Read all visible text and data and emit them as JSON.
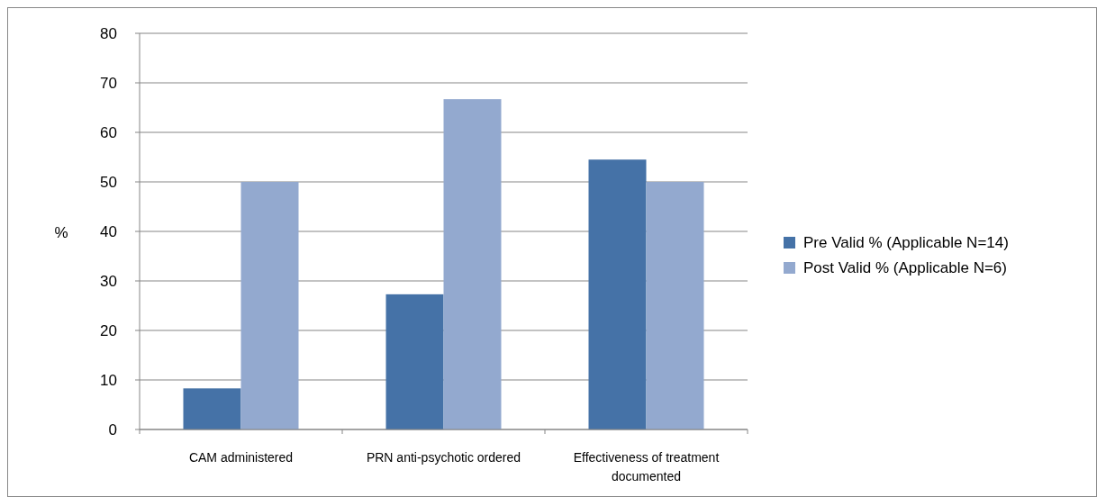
{
  "chart_data": {
    "type": "bar",
    "ylabel": "%",
    "categories": [
      "CAM administered",
      "PRN anti-psychotic ordered",
      "Effectiveness of treatment documented"
    ],
    "series": [
      {
        "name": "Pre Valid % (Applicable N=14)",
        "color": "#4572a7",
        "values": [
          8.3,
          27.3,
          54.5
        ]
      },
      {
        "name": "Post Valid % (Applicable N=6)",
        "color": "#93a9cf",
        "values": [
          50,
          66.7,
          50
        ]
      }
    ],
    "ylim": [
      0,
      80
    ],
    "yticks": [
      0,
      10,
      20,
      30,
      40,
      50,
      60,
      70,
      80
    ],
    "grid": "y",
    "legend": "right"
  }
}
